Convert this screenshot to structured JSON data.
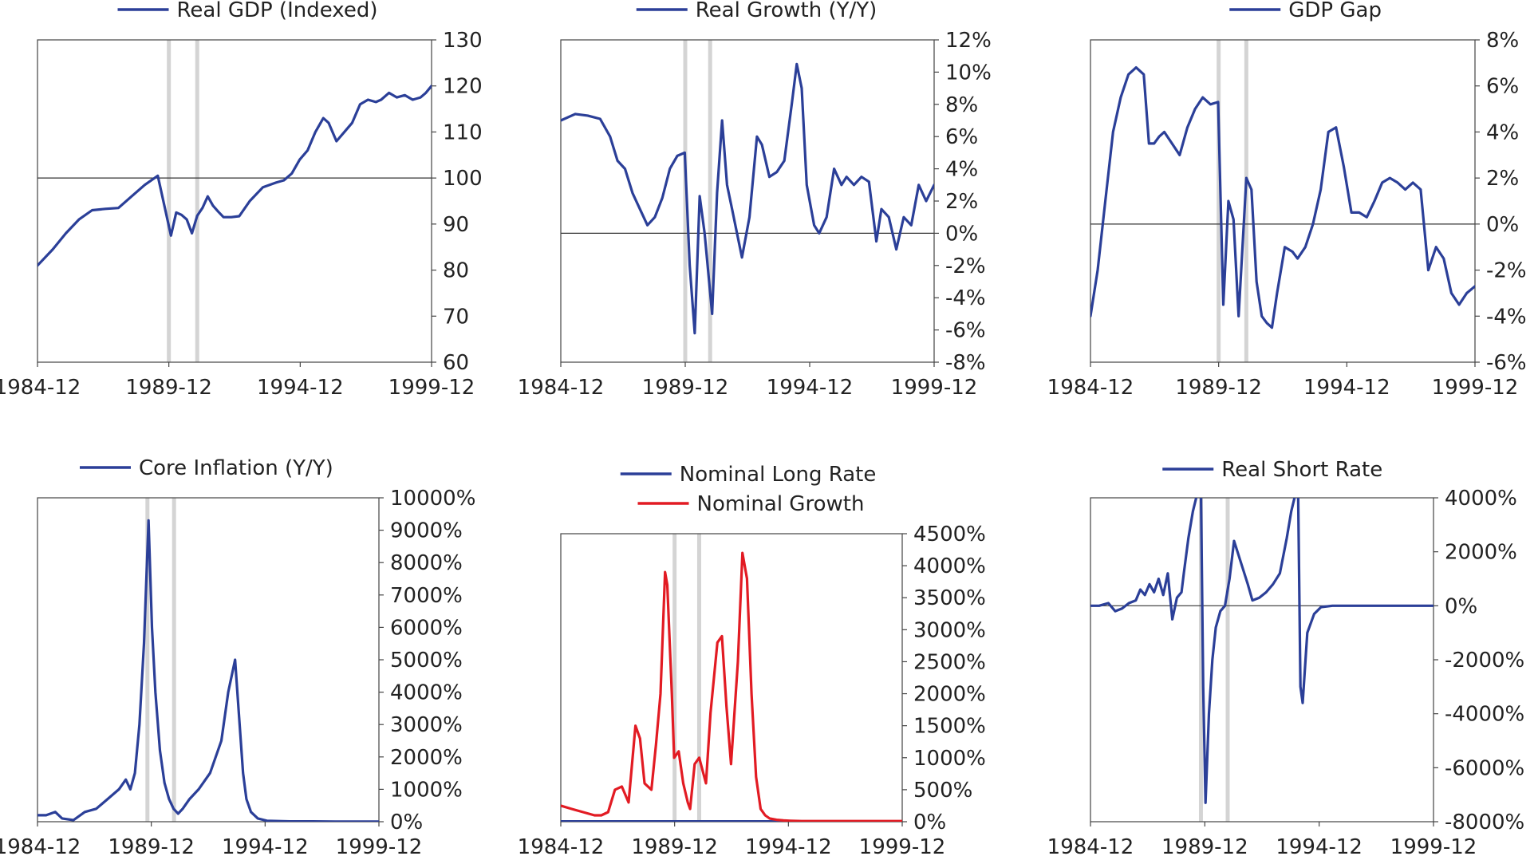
{
  "colors": {
    "blue": "#2b3f98",
    "red": "#e21b23",
    "recession": "#d4d4d4",
    "axis": "#444444"
  },
  "chart_data": [
    {
      "id": "gdp",
      "type": "line",
      "legend": [
        "Real GDP (Indexed)"
      ],
      "x_ticks": [
        "1984-12",
        "1989-12",
        "1994-12",
        "1999-12"
      ],
      "xlim": [
        1984.92,
        1999.92
      ],
      "ylim": [
        60,
        130
      ],
      "y_ticks": [
        60,
        70,
        80,
        90,
        100,
        110,
        120,
        130
      ],
      "y_format": "num",
      "baseline": 100,
      "recessions": [
        1989.92,
        1991.0
      ],
      "series": [
        {
          "name": "Real GDP (Indexed)",
          "color": "blue",
          "x": [
            1984.92,
            1985.5,
            1986.0,
            1986.5,
            1987.0,
            1987.5,
            1988.0,
            1988.5,
            1989.0,
            1989.5,
            1990.0,
            1990.2,
            1990.4,
            1990.6,
            1990.8,
            1991.0,
            1991.2,
            1991.4,
            1991.6,
            1991.8,
            1992.0,
            1992.3,
            1992.6,
            1993.0,
            1993.5,
            1994.0,
            1994.3,
            1994.6,
            1994.9,
            1995.2,
            1995.5,
            1995.8,
            1996.0,
            1996.3,
            1996.6,
            1996.9,
            1997.2,
            1997.5,
            1997.8,
            1998.0,
            1998.3,
            1998.6,
            1998.9,
            1999.2,
            1999.5,
            1999.7,
            1999.92
          ],
          "values": [
            81,
            84.5,
            88,
            91,
            93,
            93.3,
            93.5,
            96,
            98.5,
            100.5,
            87.5,
            92.5,
            92,
            91,
            88,
            91.8,
            93.5,
            96,
            94,
            92.7,
            91.5,
            91.5,
            91.7,
            95,
            98,
            99,
            99.5,
            101,
            104,
            106,
            110,
            113,
            112,
            108,
            110,
            112,
            116,
            117,
            116.5,
            117,
            118.5,
            117.5,
            118,
            117,
            117.5,
            118.5,
            120
          ]
        }
      ]
    },
    {
      "id": "growth",
      "type": "line",
      "legend": [
        "Real Growth (Y/Y)"
      ],
      "x_ticks": [
        "1984-12",
        "1989-12",
        "1994-12",
        "1999-12"
      ],
      "xlim": [
        1984.92,
        1999.92
      ],
      "ylim": [
        -8,
        12
      ],
      "y_ticks": [
        -8,
        -6,
        -4,
        -2,
        0,
        2,
        4,
        6,
        8,
        10,
        12
      ],
      "y_format": "pct",
      "baseline": 0,
      "recessions": [
        1989.92,
        1990.92
      ],
      "series": [
        {
          "name": "Real Growth (Y/Y)",
          "color": "blue",
          "x": [
            1984.92,
            1985.5,
            1986.0,
            1986.5,
            1986.9,
            1987.2,
            1987.5,
            1987.8,
            1988.1,
            1988.4,
            1988.7,
            1989.0,
            1989.3,
            1989.6,
            1989.9,
            1990.1,
            1990.3,
            1990.5,
            1990.7,
            1991.0,
            1991.2,
            1991.4,
            1991.6,
            1991.8,
            1992.0,
            1992.2,
            1992.5,
            1992.8,
            1993.0,
            1993.3,
            1993.6,
            1993.9,
            1994.2,
            1994.4,
            1994.6,
            1994.8,
            1995.1,
            1995.3,
            1995.6,
            1995.9,
            1996.2,
            1996.4,
            1996.7,
            1997.0,
            1997.3,
            1997.6,
            1997.8,
            1998.1,
            1998.4,
            1998.7,
            1999.0,
            1999.3,
            1999.6,
            1999.92
          ],
          "values": [
            7,
            7.4,
            7.3,
            7.1,
            6,
            4.5,
            4,
            2.5,
            1.5,
            0.5,
            1,
            2.2,
            4,
            4.8,
            5,
            -2,
            -6.2,
            2.3,
            0,
            -5,
            2.5,
            7,
            3,
            1.5,
            0,
            -1.5,
            1,
            6,
            5.5,
            3.5,
            3.8,
            4.5,
            8,
            10.5,
            9,
            3,
            0.5,
            0,
            1,
            4,
            3,
            3.5,
            3,
            3.5,
            3.2,
            -0.5,
            1.5,
            1,
            -1,
            1,
            0.5,
            3,
            2,
            3
          ]
        }
      ]
    },
    {
      "id": "gap",
      "type": "line",
      "legend": [
        "GDP Gap"
      ],
      "x_ticks": [
        "1984-12",
        "1989-12",
        "1994-12",
        "1999-12"
      ],
      "xlim": [
        1984.92,
        1999.92
      ],
      "ylim": [
        -6,
        8
      ],
      "y_ticks": [
        -6,
        -4,
        -2,
        0,
        2,
        4,
        6,
        8
      ],
      "y_format": "pct",
      "baseline": 0,
      "recessions": [
        1989.92,
        1991.0
      ],
      "series": [
        {
          "name": "GDP Gap",
          "color": "blue",
          "x": [
            1984.92,
            1985.2,
            1985.5,
            1985.8,
            1986.1,
            1986.4,
            1986.7,
            1987.0,
            1987.2,
            1987.4,
            1987.6,
            1987.8,
            1988.1,
            1988.4,
            1988.7,
            1989.0,
            1989.3,
            1989.6,
            1989.9,
            1990.1,
            1990.3,
            1990.5,
            1990.7,
            1991.0,
            1991.2,
            1991.4,
            1991.6,
            1991.8,
            1992.0,
            1992.2,
            1992.5,
            1992.8,
            1993.0,
            1993.3,
            1993.6,
            1993.9,
            1994.2,
            1994.5,
            1994.8,
            1995.1,
            1995.4,
            1995.7,
            1996.0,
            1996.3,
            1996.6,
            1996.9,
            1997.2,
            1997.5,
            1997.8,
            1998.1,
            1998.4,
            1998.7,
            1999.0,
            1999.3,
            1999.6,
            1999.92
          ],
          "values": [
            -4,
            -2,
            1,
            4,
            5.5,
            6.5,
            6.8,
            6.5,
            3.5,
            3.5,
            3.8,
            4,
            3.5,
            3,
            4.2,
            5,
            5.5,
            5.2,
            5.3,
            -3.5,
            1,
            0.2,
            -4,
            2,
            1.5,
            -2.5,
            -4,
            -4.3,
            -4.5,
            -3,
            -1,
            -1.2,
            -1.5,
            -1,
            0,
            1.5,
            4,
            4.2,
            2.5,
            0.5,
            0.5,
            0.3,
            1,
            1.8,
            2,
            1.8,
            1.5,
            1.8,
            1.5,
            -2,
            -1,
            -1.5,
            -3,
            -3.5,
            -3,
            -2.7
          ]
        }
      ]
    },
    {
      "id": "inflation",
      "type": "line",
      "legend": [
        "Core Inflation (Y/Y)"
      ],
      "x_ticks": [
        "1984-12",
        "1989-12",
        "1994-12",
        "1999-12"
      ],
      "xlim": [
        1984.92,
        1999.92
      ],
      "ylim": [
        0,
        10000
      ],
      "y_ticks": [
        0,
        1000,
        2000,
        3000,
        4000,
        5000,
        6000,
        7000,
        8000,
        9000,
        10000
      ],
      "y_format": "pct",
      "baseline": null,
      "recessions": [
        1989.75,
        1990.92
      ],
      "series": [
        {
          "name": "Core Inflation (Y/Y)",
          "color": "blue",
          "x": [
            1984.92,
            1985.3,
            1985.7,
            1986.0,
            1986.5,
            1987.0,
            1987.5,
            1988.0,
            1988.5,
            1988.8,
            1989.0,
            1989.2,
            1989.4,
            1989.6,
            1989.8,
            1989.95,
            1990.1,
            1990.3,
            1990.5,
            1990.7,
            1990.9,
            1991.1,
            1991.3,
            1991.6,
            1992.0,
            1992.5,
            1993.0,
            1993.3,
            1993.6,
            1993.8,
            1993.95,
            1994.1,
            1994.3,
            1994.6,
            1995.0,
            1995.5,
            1996.0,
            1997.0,
            1998.0,
            1999.0,
            1999.92
          ],
          "values": [
            200,
            200,
            300,
            100,
            50,
            300,
            400,
            700,
            1000,
            1300,
            1000,
            1500,
            3000,
            5500,
            9300,
            6000,
            4000,
            2200,
            1200,
            700,
            400,
            250,
            400,
            700,
            1000,
            1500,
            2500,
            4000,
            5000,
            3000,
            1500,
            700,
            300,
            100,
            30,
            20,
            10,
            10,
            5,
            5,
            5
          ]
        }
      ]
    },
    {
      "id": "rates",
      "type": "line",
      "legend": [
        "Nominal Long Rate",
        "Nominal Growth"
      ],
      "x_ticks": [
        "1984-12",
        "1989-12",
        "1994-12",
        "1999-12"
      ],
      "xlim": [
        1984.92,
        1999.92
      ],
      "ylim": [
        0,
        4500
      ],
      "y_ticks": [
        0,
        500,
        1000,
        1500,
        2000,
        2500,
        3000,
        3500,
        4000,
        4500
      ],
      "y_format": "pct",
      "baseline": null,
      "recessions": [
        1989.92,
        1991.0
      ],
      "series": [
        {
          "name": "Nominal Long Rate",
          "color": "blue",
          "x": [
            1984.92,
            1999.92
          ],
          "values": [
            5,
            5
          ]
        },
        {
          "name": "Nominal Growth",
          "color": "red",
          "x": [
            1984.92,
            1985.4,
            1985.9,
            1986.4,
            1986.7,
            1987.0,
            1987.3,
            1987.6,
            1987.9,
            1988.2,
            1988.4,
            1988.6,
            1988.9,
            1989.1,
            1989.3,
            1989.5,
            1989.6,
            1989.8,
            1989.9,
            1990.1,
            1990.3,
            1990.5,
            1990.6,
            1990.8,
            1991.0,
            1991.3,
            1991.5,
            1991.8,
            1992.0,
            1992.2,
            1992.4,
            1992.7,
            1992.9,
            1993.1,
            1993.3,
            1993.5,
            1993.7,
            1993.9,
            1994.1,
            1994.4,
            1994.7,
            1995.0,
            1995.5,
            1996.0,
            1997.0,
            1998.0,
            1999.0,
            1999.92
          ],
          "values": [
            250,
            200,
            150,
            100,
            100,
            150,
            500,
            550,
            300,
            1500,
            1300,
            600,
            500,
            1200,
            2000,
            3900,
            3700,
            2000,
            1000,
            1100,
            600,
            300,
            200,
            900,
            1000,
            600,
            1700,
            2800,
            2900,
            1800,
            900,
            2500,
            4200,
            3800,
            2000,
            700,
            200,
            100,
            50,
            30,
            20,
            15,
            10,
            10,
            10,
            10,
            10,
            10
          ]
        }
      ]
    },
    {
      "id": "realshort",
      "type": "line",
      "legend": [
        "Real Short Rate"
      ],
      "x_ticks": [
        "1984-12",
        "1989-12",
        "1994-12",
        "1999-12"
      ],
      "xlim": [
        1984.92,
        1999.92
      ],
      "ylim": [
        -8000,
        4000
      ],
      "y_ticks": [
        -8000,
        -6000,
        -4000,
        -2000,
        0,
        2000,
        4000
      ],
      "y_format": "pct",
      "baseline": 0,
      "recessions": [
        1989.75,
        1990.92
      ],
      "series": [
        {
          "name": "Real Short Rate",
          "color": "blue",
          "x": [
            1984.92,
            1985.3,
            1985.7,
            1986.0,
            1986.3,
            1986.6,
            1986.9,
            1987.1,
            1987.3,
            1987.5,
            1987.7,
            1987.9,
            1988.1,
            1988.3,
            1988.5,
            1988.7,
            1988.9,
            1989.0,
            1989.2,
            1989.4,
            1989.6,
            1989.75,
            1989.85,
            1989.95,
            1990.1,
            1990.25,
            1990.4,
            1990.6,
            1990.8,
            1991.0,
            1991.2,
            1991.5,
            1991.8,
            1992.0,
            1992.3,
            1992.6,
            1992.9,
            1993.2,
            1993.5,
            1993.7,
            1993.9,
            1994.0,
            1994.1,
            1994.2,
            1994.4,
            1994.7,
            1995.0,
            1995.5,
            1996.0,
            1997.0,
            1998.0,
            1999.0,
            1999.92
          ],
          "values": [
            0,
            0,
            100,
            -200,
            -100,
            100,
            200,
            600,
            400,
            800,
            500,
            1000,
            400,
            1200,
            -500,
            300,
            500,
            1200,
            2500,
            3500,
            4200,
            4200,
            -3000,
            -7300,
            -4000,
            -2000,
            -800,
            -200,
            0,
            1000,
            2400,
            1600,
            800,
            200,
            300,
            500,
            800,
            1200,
            2500,
            3500,
            4200,
            4200,
            -3000,
            -3600,
            -1000,
            -300,
            -50,
            0,
            0,
            0,
            0,
            0,
            0
          ]
        }
      ]
    }
  ]
}
